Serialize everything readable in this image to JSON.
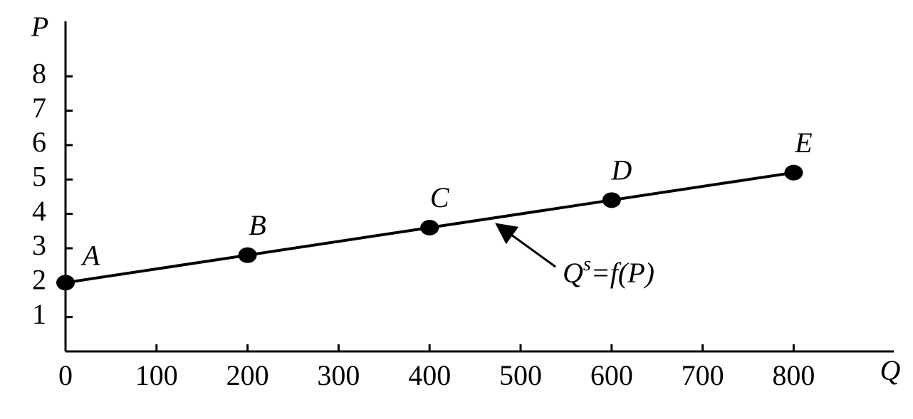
{
  "chart_data": {
    "type": "line",
    "x_label": "Q",
    "y_label": "P",
    "x": [
      0,
      200,
      400,
      600,
      800
    ],
    "series": [
      {
        "values": [
          2,
          2.8,
          3.6,
          4.4,
          5.2
        ],
        "color": "#000000"
      }
    ],
    "point_labels": [
      "A",
      "B",
      "C",
      "D",
      "E"
    ],
    "annotation": [
      "Q",
      "s",
      "=f(P)"
    ],
    "xlim": [
      0,
      910
    ],
    "ylim": [
      0,
      9.6
    ],
    "xticks": [
      0,
      100,
      200,
      300,
      400,
      500,
      600,
      700,
      800
    ],
    "yticks": [
      1,
      2,
      3,
      4,
      5,
      6,
      7,
      8
    ]
  }
}
